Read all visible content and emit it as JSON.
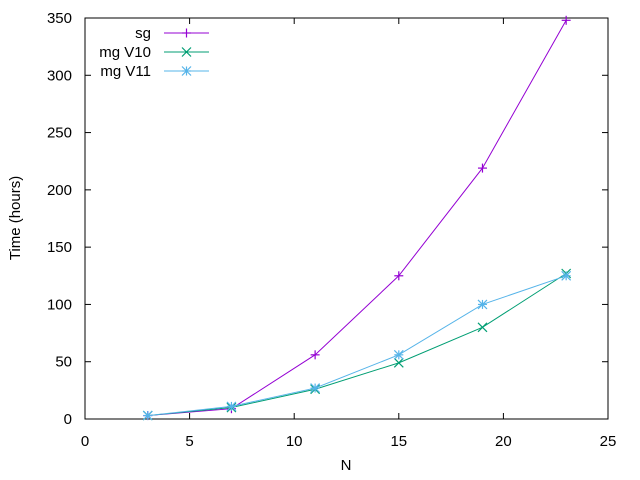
{
  "chart_data": {
    "type": "line",
    "title": "",
    "xlabel": "N",
    "ylabel": "Time (hours)",
    "xlim": [
      0,
      25
    ],
    "ylim": [
      0,
      350
    ],
    "xticks": [
      0,
      5,
      10,
      15,
      20,
      25
    ],
    "yticks": [
      0,
      50,
      100,
      150,
      200,
      250,
      300,
      350
    ],
    "grid": false,
    "legend_position": "top-left",
    "series": [
      {
        "name": "sg",
        "color": "#9400d3",
        "marker": "plus",
        "x": [
          3,
          7,
          11,
          15,
          19,
          23
        ],
        "y": [
          3,
          9,
          56,
          125,
          219,
          348
        ]
      },
      {
        "name": "mg V10",
        "color": "#009e73",
        "marker": "cross",
        "x": [
          3,
          7,
          11,
          15,
          19,
          23
        ],
        "y": [
          3,
          10,
          26,
          49,
          80,
          127
        ]
      },
      {
        "name": "mg V11",
        "color": "#56b4e9",
        "marker": "star",
        "x": [
          3,
          7,
          11,
          15,
          19,
          23
        ],
        "y": [
          3,
          11,
          27,
          56,
          100,
          125
        ]
      }
    ]
  }
}
